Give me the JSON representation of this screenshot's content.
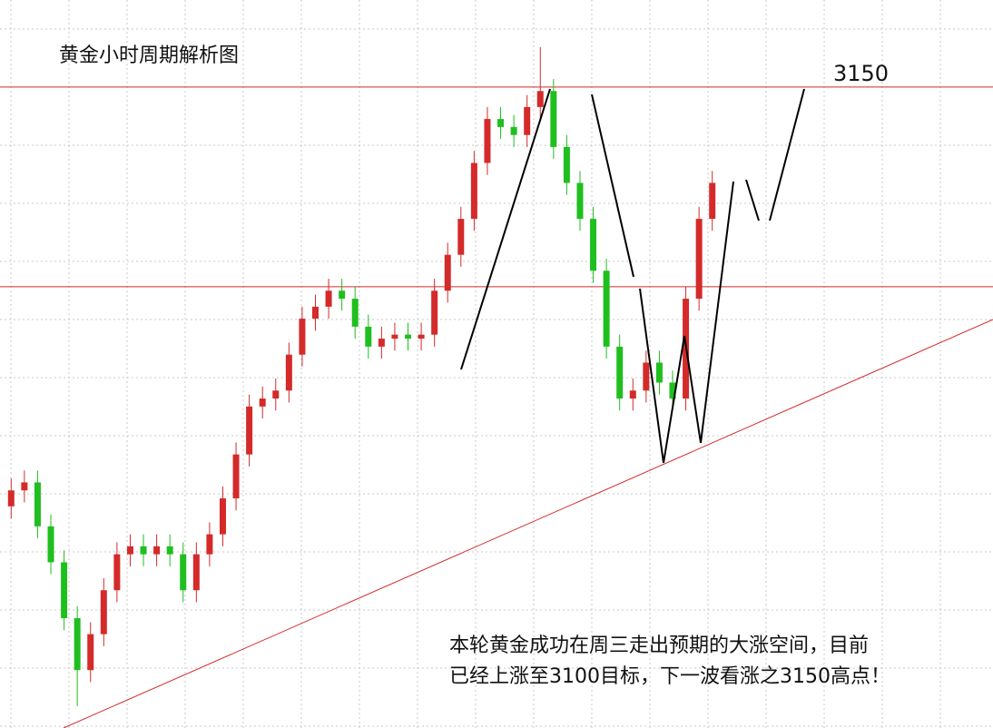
{
  "chart_data": {
    "type": "candlestick",
    "title": "黄金小时周期解析图",
    "annotation": [
      "本轮黄金成功在周三走出预期的大涨空间，目前",
      "已经上涨至3100目标，下一波看涨之3150高点！"
    ],
    "ylim": [
      2989.5,
      3171.8
    ],
    "hlines": [
      3150,
      3100
    ],
    "trendline": [
      2989.5,
      3091.8
    ],
    "up_color": "#d42a2a",
    "down_color": "#1fbf1f",
    "line_color": "#d42a2a",
    "open": [
      3045,
      3049,
      3051,
      3040,
      3031,
      3017,
      3004,
      3013,
      3024,
      3033,
      3035,
      3033,
      3035,
      3033,
      3024,
      3033,
      3038,
      3047,
      3058,
      3070,
      3072,
      3074,
      3083,
      3092,
      3095,
      3099,
      3097,
      3090,
      3085,
      3087,
      3088,
      3087,
      3088,
      3099,
      3108,
      3117,
      3131,
      3142,
      3140,
      3138,
      3145,
      3149,
      3135,
      3126,
      3117,
      3104,
      3085,
      3072,
      3074,
      3081,
      3076,
      3072,
      3097,
      3117
    ],
    "high": [
      3052,
      3054,
      3054,
      3043,
      3034,
      3020,
      3016,
      3027,
      3036,
      3038,
      3038,
      3038,
      3038,
      3036,
      3036,
      3041,
      3050,
      3061,
      3073,
      3075,
      3077,
      3086,
      3095,
      3098,
      3102,
      3102,
      3100,
      3093,
      3090,
      3091,
      3091,
      3091,
      3102,
      3111,
      3120,
      3134,
      3145,
      3145,
      3143,
      3148,
      3160,
      3152,
      3138,
      3129,
      3120,
      3107,
      3088,
      3077,
      3084,
      3084,
      3079,
      3100,
      3120,
      3129
    ],
    "low": [
      3042,
      3046,
      3037,
      3028,
      3014,
      2995,
      3001,
      3010,
      3021,
      3030,
      3030,
      3030,
      3030,
      3021,
      3021,
      3030,
      3035,
      3044,
      3055,
      3067,
      3069,
      3071,
      3080,
      3089,
      3092,
      3094,
      3087,
      3082,
      3082,
      3084,
      3084,
      3084,
      3085,
      3096,
      3105,
      3114,
      3128,
      3137,
      3135,
      3135,
      3142,
      3132,
      3123,
      3114,
      3101,
      3082,
      3069,
      3069,
      3071,
      3073,
      3069,
      3069,
      3094,
      3114
    ],
    "close": [
      3049,
      3051,
      3040,
      3031,
      3017,
      3004,
      3013,
      3024,
      3033,
      3035,
      3033,
      3035,
      3033,
      3024,
      3033,
      3038,
      3047,
      3058,
      3070,
      3072,
      3074,
      3083,
      3092,
      3095,
      3099,
      3097,
      3090,
      3085,
      3087,
      3088,
      3087,
      3088,
      3099,
      3108,
      3117,
      3131,
      3142,
      3140,
      3138,
      3145,
      3149,
      3135,
      3126,
      3117,
      3104,
      3085,
      3072,
      3074,
      3081,
      3076,
      3072,
      3097,
      3117,
      3126
    ]
  }
}
